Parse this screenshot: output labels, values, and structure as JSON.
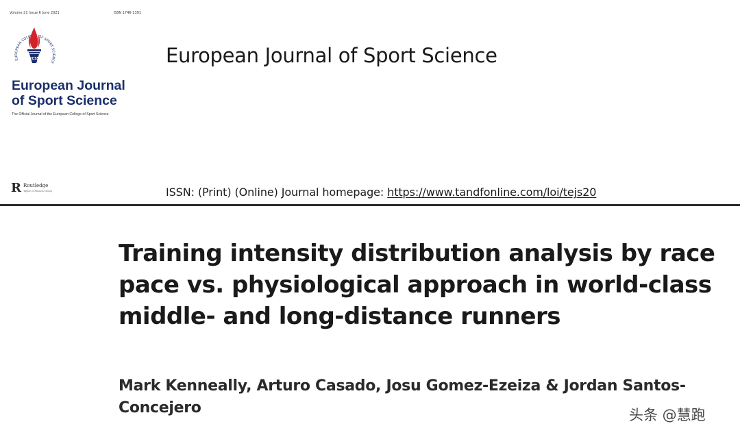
{
  "cover": {
    "volume_line": "Volume 21 Issue 6 June 2021",
    "issn_small": "ISSN 1746-1391",
    "logo_text": "ECSS",
    "logo_ring_text": "EUROPEAN COLLEGE OF SPORT SCIENCE",
    "title_line1": "European Journal",
    "title_line2": "of Sport Science",
    "tagline": "The Official Journal of the European College of Sport Science",
    "brand_color": "#1b2f6b",
    "flame_color": "#d2232a"
  },
  "journal": {
    "title": "European Journal of Sport Science"
  },
  "publisher": {
    "name": "Routledge",
    "sub": "Taylor & Francis Group",
    "mark_icon": "routledge-r-icon"
  },
  "issn": {
    "prefix": "ISSN: (Print) (Online) Journal homepage: ",
    "url": "https://www.tandfonline.com/loi/tejs20"
  },
  "article": {
    "title_lines": [
      "Training intensity distribution analysis by race",
      "pace vs. physiological approach in world-class",
      "middle- and long-distance runners"
    ],
    "author_lines": [
      "Mark Kenneally, Arturo Casado, Josu Gomez-Ezeiza & Jordan Santos-",
      "Concejero"
    ]
  },
  "watermark": {
    "text": "头条 @慧跑"
  }
}
